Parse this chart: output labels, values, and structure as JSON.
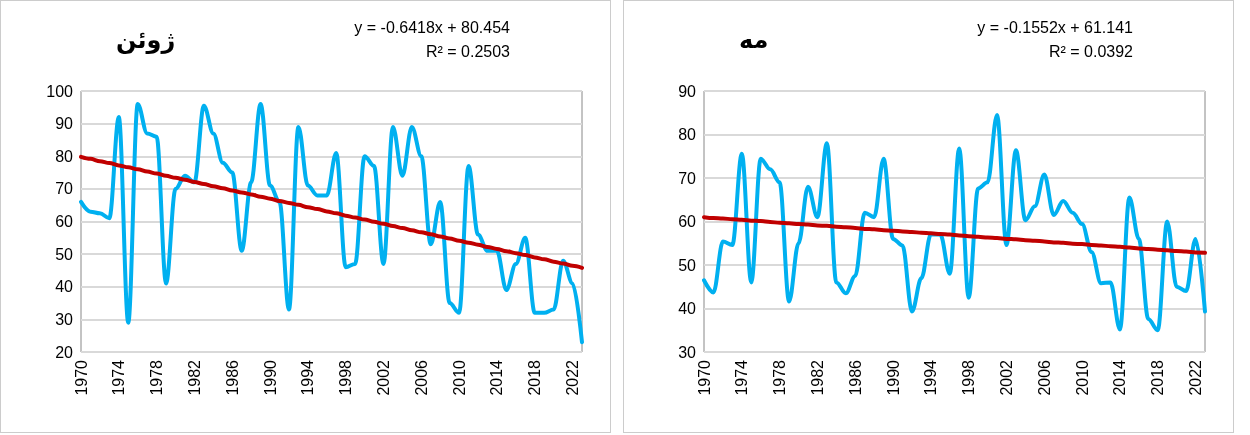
{
  "chart_data": [
    {
      "type": "line",
      "title": "ژوئن",
      "annotations": [
        "y = -0.6418x + 80.454",
        "R² = 0.2503"
      ],
      "x": [
        1970,
        1971,
        1972,
        1973,
        1974,
        1975,
        1976,
        1977,
        1978,
        1979,
        1980,
        1981,
        1982,
        1983,
        1984,
        1985,
        1986,
        1987,
        1988,
        1989,
        1990,
        1991,
        1992,
        1993,
        1994,
        1995,
        1996,
        1997,
        1998,
        1999,
        2000,
        2001,
        2002,
        2003,
        2004,
        2005,
        2006,
        2007,
        2008,
        2009,
        2010,
        2011,
        2012,
        2013,
        2014,
        2015,
        2016,
        2017,
        2018,
        2019,
        2020,
        2021,
        2022,
        2023
      ],
      "series": [
        {
          "color": "#00b0f0",
          "values": [
            66,
            63,
            62.5,
            61,
            92,
            29,
            96,
            87,
            86,
            41,
            70,
            74,
            72,
            95.5,
            87,
            78,
            75,
            51,
            72,
            96,
            71,
            66,
            33,
            89,
            71,
            68,
            68,
            81,
            46,
            47,
            80,
            77,
            47,
            89,
            74,
            89,
            80,
            53,
            66,
            35,
            32,
            77,
            56,
            51,
            51,
            39,
            47,
            55,
            32,
            32,
            33,
            48,
            41,
            23
          ]
        },
        {
          "type": "line",
          "color": "#c00000",
          "values": [
            79.8,
            79.2,
            78.5,
            77.9,
            77.2,
            76.6,
            76.0,
            75.3,
            74.7,
            74.0,
            73.4,
            72.8,
            72.1,
            71.5,
            70.8,
            70.2,
            69.5,
            68.9,
            68.3,
            67.6,
            67.0,
            66.3,
            65.7,
            65.1,
            64.4,
            63.8,
            63.1,
            62.5,
            61.8,
            61.2,
            60.6,
            59.9,
            59.3,
            58.6,
            58.0,
            57.3,
            56.7,
            56.1,
            55.4,
            54.8,
            54.1,
            53.5,
            52.9,
            52.2,
            51.6,
            50.9,
            50.3,
            49.7,
            49.0,
            48.4,
            47.7,
            47.1,
            46.4,
            45.8
          ]
        }
      ],
      "xlim": [
        1970,
        2023
      ],
      "xticks": [
        1970,
        1974,
        1978,
        1982,
        1986,
        1990,
        1994,
        1998,
        2002,
        2006,
        2010,
        2014,
        2018,
        2022
      ],
      "ylim": [
        20,
        100
      ],
      "yticks": [
        20,
        30,
        40,
        50,
        60,
        70,
        80,
        90,
        100
      ],
      "grid": "y",
      "marker": "none",
      "line_style": "solid"
    },
    {
      "type": "line",
      "title": "مه",
      "annotations": [
        "y = -0.1552x + 61.141",
        "R² = 0.0392"
      ],
      "x": [
        1970,
        1971,
        1972,
        1973,
        1974,
        1975,
        1976,
        1977,
        1978,
        1979,
        1980,
        1981,
        1982,
        1983,
        1984,
        1985,
        1986,
        1987,
        1988,
        1989,
        1990,
        1991,
        1992,
        1993,
        1994,
        1995,
        1996,
        1997,
        1998,
        1999,
        2000,
        2001,
        2002,
        2003,
        2004,
        2005,
        2006,
        2007,
        2008,
        2009,
        2010,
        2011,
        2012,
        2013,
        2014,
        2015,
        2016,
        2017,
        2018,
        2019,
        2020,
        2021,
        2022,
        2023
      ],
      "series": [
        {
          "color": "#00b0f0",
          "values": [
            46.5,
            43.7,
            55.4,
            54.6,
            75.6,
            46,
            74.4,
            72,
            69,
            41.6,
            55,
            68,
            61,
            78,
            46,
            43.5,
            47.5,
            62,
            61,
            74.4,
            56,
            54.5,
            39.3,
            47,
            57,
            57,
            48,
            76.8,
            42.5,
            67.6,
            69,
            84.5,
            54.6,
            76.4,
            60.3,
            63.5,
            70.8,
            61.5,
            64.7,
            62,
            59.4,
            53,
            45.8,
            46,
            35.2,
            65.5,
            56,
            37.6,
            35,
            60,
            45,
            44,
            56,
            39.3
          ]
        },
        {
          "type": "line",
          "color": "#c00000",
          "values": [
            61.0,
            60.8,
            60.7,
            60.5,
            60.4,
            60.2,
            60.1,
            59.9,
            59.7,
            59.6,
            59.4,
            59.3,
            59.1,
            59.0,
            58.8,
            58.7,
            58.5,
            58.3,
            58.2,
            58.0,
            57.9,
            57.7,
            57.6,
            57.4,
            57.3,
            57.1,
            57.0,
            56.8,
            56.6,
            56.5,
            56.3,
            56.2,
            56.0,
            55.9,
            55.7,
            55.6,
            55.4,
            55.2,
            55.1,
            54.9,
            54.8,
            54.6,
            54.5,
            54.3,
            54.2,
            54.0,
            53.8,
            53.7,
            53.5,
            53.4,
            53.2,
            53.1,
            52.9,
            52.8
          ]
        }
      ],
      "xlim": [
        1970,
        2023
      ],
      "xticks": [
        1970,
        1974,
        1978,
        1982,
        1986,
        1990,
        1994,
        1998,
        2002,
        2006,
        2010,
        2014,
        2018,
        2022
      ],
      "ylim": [
        30,
        90
      ],
      "yticks": [
        30,
        40,
        50,
        60,
        70,
        80,
        90
      ],
      "grid": "y",
      "marker": "none",
      "line_style": "solid"
    }
  ]
}
